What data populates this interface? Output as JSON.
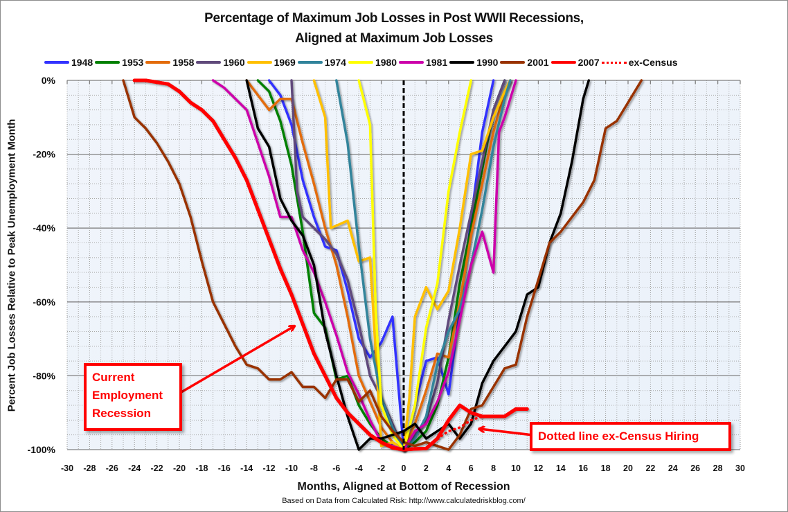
{
  "chart_data": {
    "type": "line",
    "title": "Percentage of Maximum Job Losses in Post WWII Recessions,",
    "subtitle": "Aligned at Maximum Job Losses",
    "xlabel": "Months, Aligned at Bottom of Recession",
    "ylabel": "Percent Job Losses Relative to Peak Unemployment Month",
    "source_note": "Based on Data from Calculated Risk: http://www.calculatedriskblog.com/",
    "xlim": [
      -30,
      30
    ],
    "ylim": [
      -100,
      0
    ],
    "x_ticks": [
      "-30",
      "-28",
      "-26",
      "-24",
      "-22",
      "-20",
      "-18",
      "-16",
      "-14",
      "-12",
      "-10",
      "-8",
      "-6",
      "-4",
      "-2",
      "0",
      "2",
      "4",
      "6",
      "8",
      "10",
      "12",
      "14",
      "16",
      "18",
      "20",
      "22",
      "24",
      "26",
      "28",
      "30"
    ],
    "y_ticks": [
      "0%",
      "-20%",
      "-40%",
      "-60%",
      "-80%",
      "-100%"
    ],
    "grid": true,
    "legend_position": "top",
    "vertical_reference_line": {
      "x": 0,
      "style": "dashed",
      "color": "#000000"
    },
    "series": [
      {
        "name": "1948",
        "color": "#3333ff",
        "dashed": false,
        "points": [
          [
            -12,
            0
          ],
          [
            -11,
            -4
          ],
          [
            -10,
            -12
          ],
          [
            -9,
            -27
          ],
          [
            -8,
            -37
          ],
          [
            -7,
            -45
          ],
          [
            -6,
            -46
          ],
          [
            -5,
            -57
          ],
          [
            -4,
            -70
          ],
          [
            -3,
            -75
          ],
          [
            -2,
            -71
          ],
          [
            -1,
            -64
          ],
          [
            0,
            -100
          ],
          [
            1,
            -88
          ],
          [
            2,
            -76
          ],
          [
            3,
            -75
          ],
          [
            4,
            -85
          ],
          [
            5,
            -62
          ],
          [
            6,
            -38
          ],
          [
            7,
            -14
          ],
          [
            8,
            0
          ]
        ]
      },
      {
        "name": "1953",
        "color": "#008000",
        "dashed": false,
        "points": [
          [
            -13,
            0
          ],
          [
            -12,
            -3
          ],
          [
            -11,
            -11
          ],
          [
            -10,
            -23
          ],
          [
            -9,
            -41
          ],
          [
            -8,
            -63
          ],
          [
            -7,
            -67
          ],
          [
            -6,
            -81
          ],
          [
            -5,
            -80
          ],
          [
            -4,
            -88
          ],
          [
            -3,
            -93
          ],
          [
            -2,
            -97
          ],
          [
            -1,
            -99
          ],
          [
            0,
            -100
          ],
          [
            1,
            -98
          ],
          [
            2,
            -95
          ],
          [
            3,
            -88
          ],
          [
            4,
            -75
          ],
          [
            5,
            -55
          ],
          [
            6,
            -40
          ],
          [
            7,
            -24
          ],
          [
            8,
            -8
          ],
          [
            9,
            0
          ]
        ]
      },
      {
        "name": "1958",
        "color": "#e36c0a",
        "dashed": false,
        "points": [
          [
            -14,
            0
          ],
          [
            -12,
            -8
          ],
          [
            -11,
            -5
          ],
          [
            -10,
            -5
          ],
          [
            -9,
            -17
          ],
          [
            -8,
            -28
          ],
          [
            -7,
            -40
          ],
          [
            -6,
            -50
          ],
          [
            -5,
            -64
          ],
          [
            -4,
            -80
          ],
          [
            -3,
            -87
          ],
          [
            -2,
            -94
          ],
          [
            -1,
            -98
          ],
          [
            0,
            -100
          ],
          [
            1,
            -93
          ],
          [
            2,
            -84
          ],
          [
            3,
            -74
          ],
          [
            4,
            -75
          ],
          [
            5,
            -60
          ],
          [
            6,
            -42
          ],
          [
            7,
            -28
          ],
          [
            8,
            -14
          ],
          [
            9,
            -3
          ],
          [
            9.5,
            0
          ]
        ]
      },
      {
        "name": "1960",
        "color": "#604a7b",
        "dashed": false,
        "points": [
          [
            -10,
            0
          ],
          [
            -9.5,
            -30
          ],
          [
            -9,
            -37
          ],
          [
            -8,
            -40
          ],
          [
            -7,
            -43
          ],
          [
            -6,
            -47
          ],
          [
            -5,
            -54
          ],
          [
            -4,
            -66
          ],
          [
            -3,
            -80
          ],
          [
            -2,
            -86
          ],
          [
            -1,
            -93
          ],
          [
            0,
            -100
          ],
          [
            1,
            -96
          ],
          [
            2,
            -92
          ],
          [
            3,
            -82
          ],
          [
            4,
            -65
          ],
          [
            5,
            -50
          ],
          [
            6,
            -36
          ],
          [
            7,
            -22
          ],
          [
            8,
            -8
          ],
          [
            9,
            0
          ]
        ]
      },
      {
        "name": "1969",
        "color": "#ffc000",
        "dashed": false,
        "points": [
          [
            -8,
            0
          ],
          [
            -7,
            -10
          ],
          [
            -6.5,
            -40
          ],
          [
            -5,
            -38
          ],
          [
            -4,
            -49
          ],
          [
            -3,
            -48
          ],
          [
            -2,
            -99
          ],
          [
            -1,
            -98
          ],
          [
            0,
            -100
          ],
          [
            0.5,
            -86
          ],
          [
            1,
            -64
          ],
          [
            2,
            -56
          ],
          [
            3,
            -62
          ],
          [
            4,
            -57
          ],
          [
            5,
            -40
          ],
          [
            6,
            -20
          ],
          [
            7,
            -19
          ],
          [
            8,
            -10
          ],
          [
            9,
            -3
          ],
          [
            9.5,
            0
          ]
        ]
      },
      {
        "name": "1974",
        "color": "#31849b",
        "dashed": false,
        "points": [
          [
            -6,
            0
          ],
          [
            -5,
            -17
          ],
          [
            -4,
            -45
          ],
          [
            -3,
            -70
          ],
          [
            -2,
            -86
          ],
          [
            -1,
            -94
          ],
          [
            0,
            -100
          ],
          [
            1,
            -97
          ],
          [
            2,
            -91
          ],
          [
            3,
            -77
          ],
          [
            4,
            -68
          ],
          [
            5,
            -62
          ],
          [
            6,
            -50
          ],
          [
            7,
            -35
          ],
          [
            8,
            -18
          ],
          [
            9,
            -5
          ],
          [
            9.5,
            0
          ]
        ]
      },
      {
        "name": "1980",
        "color": "#ffff00",
        "dashed": false,
        "points": [
          [
            -4,
            0
          ],
          [
            -3,
            -12
          ],
          [
            -2.5,
            -62
          ],
          [
            -2,
            -88
          ],
          [
            -1,
            -96
          ],
          [
            0,
            -100
          ],
          [
            1,
            -88
          ],
          [
            2,
            -67
          ],
          [
            3,
            -55
          ],
          [
            4,
            -30
          ],
          [
            5,
            -14
          ],
          [
            6,
            0
          ]
        ]
      },
      {
        "name": "1981",
        "color": "#cc00aa",
        "dashed": false,
        "points": [
          [
            -17,
            0
          ],
          [
            -16,
            -2
          ],
          [
            -14,
            -8
          ],
          [
            -13,
            -17
          ],
          [
            -12,
            -26
          ],
          [
            -11,
            -37
          ],
          [
            -10,
            -37
          ],
          [
            -9,
            -46
          ],
          [
            -8,
            -52
          ],
          [
            -7,
            -60
          ],
          [
            -6,
            -69
          ],
          [
            -5,
            -79
          ],
          [
            -4,
            -85
          ],
          [
            -3,
            -92
          ],
          [
            -2,
            -98
          ],
          [
            -1,
            -99
          ],
          [
            0,
            -100
          ],
          [
            1,
            -95
          ],
          [
            2,
            -93
          ],
          [
            3,
            -87
          ],
          [
            4,
            -79
          ],
          [
            5,
            -65
          ],
          [
            6,
            -50
          ],
          [
            7,
            -41
          ],
          [
            8,
            -52
          ],
          [
            8.5,
            -14
          ],
          [
            9,
            -10
          ],
          [
            10,
            0
          ]
        ]
      },
      {
        "name": "1990",
        "color": "#000000",
        "dashed": false,
        "points": [
          [
            -14,
            0
          ],
          [
            -13,
            -13
          ],
          [
            -12,
            -18
          ],
          [
            -11,
            -32
          ],
          [
            -10,
            -38
          ],
          [
            -9,
            -42
          ],
          [
            -8,
            -50
          ],
          [
            -7,
            -68
          ],
          [
            -6,
            -80
          ],
          [
            -5,
            -91
          ],
          [
            -4,
            -100
          ],
          [
            -3,
            -97
          ],
          [
            -2,
            -97
          ],
          [
            -1,
            -96
          ],
          [
            0,
            -95
          ],
          [
            1,
            -93
          ],
          [
            2,
            -97
          ],
          [
            3,
            -95
          ],
          [
            4,
            -93
          ],
          [
            5,
            -97
          ],
          [
            6,
            -93
          ],
          [
            7,
            -82
          ],
          [
            8,
            -76
          ],
          [
            9,
            -72
          ],
          [
            10,
            -68
          ],
          [
            11,
            -58
          ],
          [
            12,
            -56
          ],
          [
            13,
            -44
          ],
          [
            14,
            -36
          ],
          [
            15,
            -22
          ],
          [
            16,
            -5
          ],
          [
            16.5,
            0
          ]
        ]
      },
      {
        "name": "2001",
        "color": "#993300",
        "dashed": false,
        "points": [
          [
            -25,
            0
          ],
          [
            -24,
            -10
          ],
          [
            -23,
            -13
          ],
          [
            -22,
            -17
          ],
          [
            -21,
            -22
          ],
          [
            -20,
            -28
          ],
          [
            -19,
            -37
          ],
          [
            -18,
            -49
          ],
          [
            -17,
            -60
          ],
          [
            -16,
            -66
          ],
          [
            -15,
            -72
          ],
          [
            -14,
            -77
          ],
          [
            -13,
            -78
          ],
          [
            -12,
            -81
          ],
          [
            -11,
            -81
          ],
          [
            -10,
            -79
          ],
          [
            -9,
            -83
          ],
          [
            -8,
            -83
          ],
          [
            -7,
            -86
          ],
          [
            -6,
            -81
          ],
          [
            -5,
            -81
          ],
          [
            -4,
            -87
          ],
          [
            -3,
            -84
          ],
          [
            -2,
            -91
          ],
          [
            -1,
            -95
          ],
          [
            0,
            -98
          ],
          [
            1,
            -99
          ],
          [
            2,
            -98
          ],
          [
            3,
            -99
          ],
          [
            4,
            -100
          ],
          [
            5,
            -96
          ],
          [
            6,
            -89
          ],
          [
            7,
            -88
          ],
          [
            8,
            -83
          ],
          [
            9,
            -78
          ],
          [
            10,
            -77
          ],
          [
            11,
            -64
          ],
          [
            12,
            -54
          ],
          [
            13,
            -44
          ],
          [
            14,
            -41
          ],
          [
            15,
            -37
          ],
          [
            16,
            -33
          ],
          [
            17,
            -27
          ],
          [
            18,
            -13
          ],
          [
            19,
            -11
          ],
          [
            20,
            -6
          ],
          [
            21,
            -1
          ],
          [
            21.2,
            0
          ]
        ]
      },
      {
        "name": "2007",
        "color": "#ff0000",
        "dashed": false,
        "points": [
          [
            -24,
            0
          ],
          [
            -23,
            0
          ],
          [
            -22,
            -0.5
          ],
          [
            -21,
            -1
          ],
          [
            -20,
            -3
          ],
          [
            -19,
            -6
          ],
          [
            -18,
            -8
          ],
          [
            -17,
            -11
          ],
          [
            -16,
            -16
          ],
          [
            -15,
            -21
          ],
          [
            -14,
            -27
          ],
          [
            -13,
            -35
          ],
          [
            -12,
            -43
          ],
          [
            -11,
            -51
          ],
          [
            -10,
            -58
          ],
          [
            -9,
            -66
          ],
          [
            -8,
            -74
          ],
          [
            -7,
            -80
          ],
          [
            -6,
            -86
          ],
          [
            -5,
            -90
          ],
          [
            -4,
            -93
          ],
          [
            -3,
            -96
          ],
          [
            -2,
            -98
          ],
          [
            -1,
            -99.5
          ],
          [
            0,
            -100
          ],
          [
            1,
            -99.8
          ],
          [
            2,
            -99.7
          ],
          [
            3,
            -97
          ],
          [
            4,
            -92
          ],
          [
            5,
            -88
          ],
          [
            6,
            -90
          ],
          [
            7,
            -91
          ],
          [
            8,
            -91
          ],
          [
            9,
            -91
          ],
          [
            10,
            -89
          ],
          [
            11,
            -89
          ]
        ]
      },
      {
        "name": "ex-Census",
        "color": "#ff0000",
        "dashed": true,
        "points": [
          [
            3,
            -97
          ],
          [
            4,
            -95
          ],
          [
            5,
            -94
          ],
          [
            6,
            -92
          ],
          [
            7,
            -91
          ]
        ]
      }
    ],
    "annotations": [
      {
        "text": "Current\nEmployment\nRecession",
        "arrow_to": [
          -9.5,
          -66
        ]
      },
      {
        "text": "Dotted line ex-Census Hiring",
        "arrow_to": [
          6.5,
          -94
        ]
      }
    ]
  }
}
